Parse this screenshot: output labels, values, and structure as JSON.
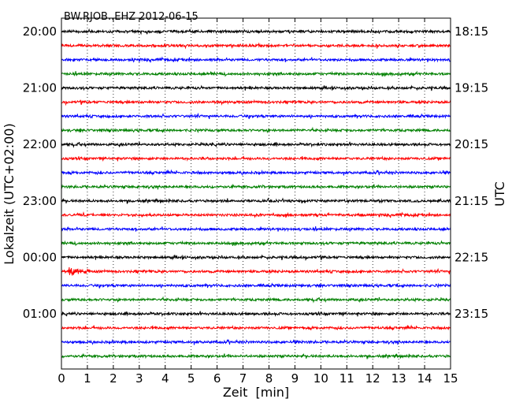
{
  "chart_data": {
    "type": "line",
    "title": "BW.RJOB..EHZ 2012-06-15",
    "xlabel": "Zeit  [min]",
    "ylabel_left": "Lokalzeit (UTC+02:00)",
    "ylabel_right": "UTC",
    "xlim": [
      0,
      15
    ],
    "xticks": [
      "0",
      "1",
      "2",
      "3",
      "4",
      "5",
      "6",
      "7",
      "8",
      "9",
      "10",
      "11",
      "12",
      "13",
      "14",
      "15"
    ],
    "grid": "vertical dotted at each minute",
    "row_interval_minutes": 15,
    "row_count": 24,
    "trace_colors": [
      "#000000",
      "#ff0000",
      "#0000ff",
      "#008000"
    ],
    "left_labels": [
      {
        "row": 0,
        "text": "20:00"
      },
      {
        "row": 4,
        "text": "21:00"
      },
      {
        "row": 8,
        "text": "22:00"
      },
      {
        "row": 12,
        "text": "23:00"
      },
      {
        "row": 16,
        "text": "00:00"
      },
      {
        "row": 20,
        "text": "01:00"
      }
    ],
    "right_labels": [
      {
        "row": 0,
        "text": "18:15"
      },
      {
        "row": 4,
        "text": "19:15"
      },
      {
        "row": 8,
        "text": "20:15"
      },
      {
        "row": 12,
        "text": "21:15"
      },
      {
        "row": 16,
        "text": "22:15"
      },
      {
        "row": 20,
        "text": "23:15"
      }
    ],
    "events": [
      {
        "row": 17,
        "start_min": 0.3,
        "end_min": 1.1,
        "amplitude": "high"
      }
    ]
  }
}
